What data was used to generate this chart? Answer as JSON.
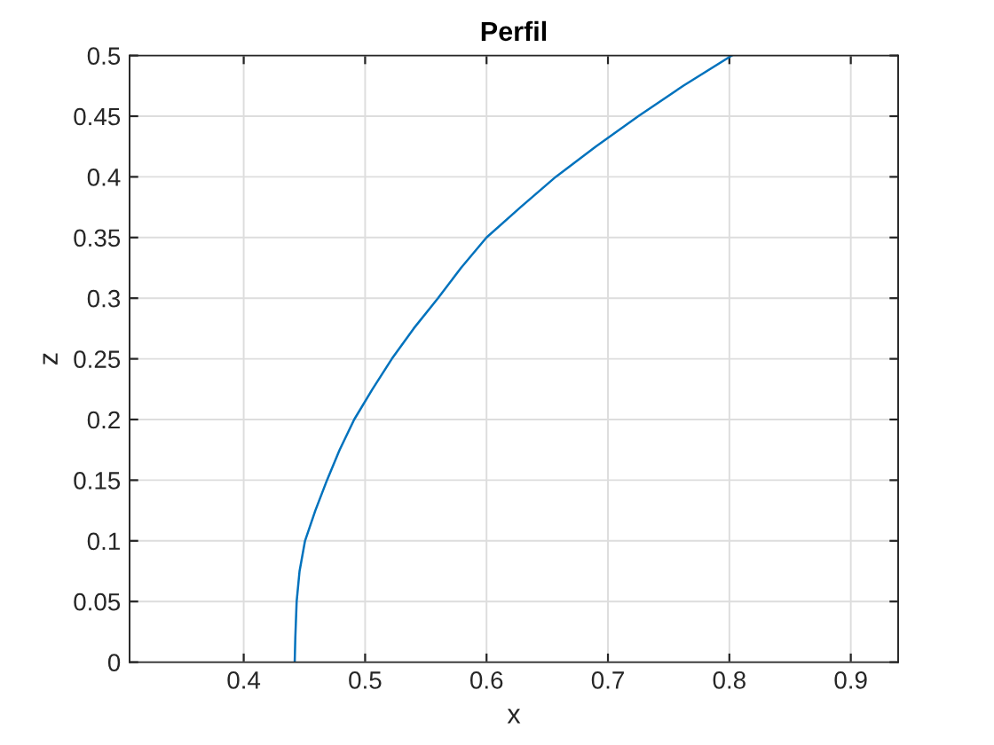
{
  "chart_data": {
    "type": "line",
    "title": "Perfil",
    "xlabel": "x",
    "ylabel": "z",
    "series": [
      {
        "color": "#0072bd",
        "x": [
          0.442,
          0.4425,
          0.4436,
          0.446,
          0.4505,
          0.459,
          0.4686,
          0.479,
          0.491,
          0.506,
          0.522,
          0.54,
          0.56,
          0.579,
          0.6,
          0.628,
          0.657,
          0.69,
          0.725,
          0.762,
          0.802
        ],
        "values": [
          0,
          0.02,
          0.05,
          0.075,
          0.1,
          0.125,
          0.15,
          0.175,
          0.2,
          0.225,
          0.25,
          0.275,
          0.3,
          0.325,
          0.35,
          0.375,
          0.4,
          0.425,
          0.45,
          0.475,
          0.5
        ]
      }
    ],
    "xlim": [
      0.306,
      0.939
    ],
    "ylim": [
      0,
      0.5
    ],
    "xticks": [
      0.4,
      0.5,
      0.6,
      0.7,
      0.8,
      0.9
    ],
    "yticks": [
      0,
      0.05,
      0.1,
      0.15,
      0.2,
      0.25,
      0.3,
      0.35,
      0.4,
      0.45,
      0.5
    ],
    "grid": true,
    "marker": "none",
    "line_style": "solid"
  }
}
